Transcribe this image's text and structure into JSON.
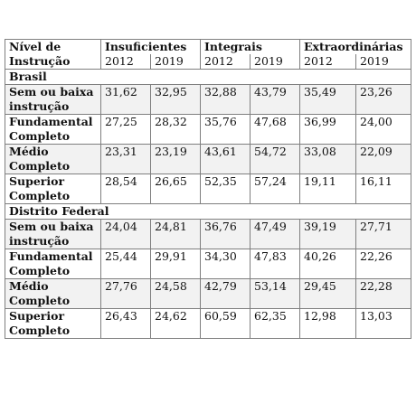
{
  "header": {
    "first_col": "Nível de Instrução",
    "groups": [
      "Insuficientes",
      "Integrais",
      "Extraordinárias"
    ],
    "years": [
      "2012",
      "2019",
      "2012",
      "2019",
      "2012",
      "2019"
    ]
  },
  "sections": [
    {
      "name": "Brasil",
      "rows": [
        {
          "label": "Sem ou baixa instrução",
          "values": [
            "31,62",
            "32,95",
            "32,88",
            "43,79",
            "35,49",
            "23,26"
          ]
        },
        {
          "label": "Fundamental Completo",
          "values": [
            "27,25",
            "28,32",
            "35,76",
            "47,68",
            "36,99",
            "24,00"
          ]
        },
        {
          "label": "Médio Completo",
          "values": [
            "23,31",
            "23,19",
            "43,61",
            "54,72",
            "33,08",
            "22,09"
          ]
        },
        {
          "label": "Superior Completo",
          "values": [
            "28,54",
            "26,65",
            "52,35",
            "57,24",
            "19,11",
            "16,11"
          ]
        }
      ]
    },
    {
      "name": "Distrito Federal",
      "rows": [
        {
          "label": "Sem ou baixa instrução",
          "values": [
            "24,04",
            "24,81",
            "36,76",
            "47,49",
            "39,19",
            "27,71"
          ]
        },
        {
          "label": "Fundamental Completo",
          "values": [
            "25,44",
            "29,91",
            "34,30",
            "47,83",
            "40,26",
            "22,26"
          ]
        },
        {
          "label": "Médio Completo",
          "values": [
            "27,76",
            "24,58",
            "42,79",
            "53,14",
            "29,45",
            "22,28"
          ]
        },
        {
          "label": "Superior Completo",
          "values": [
            "26,43",
            "24,62",
            "60,59",
            "62,35",
            "12,98",
            "13,03"
          ]
        }
      ]
    }
  ]
}
